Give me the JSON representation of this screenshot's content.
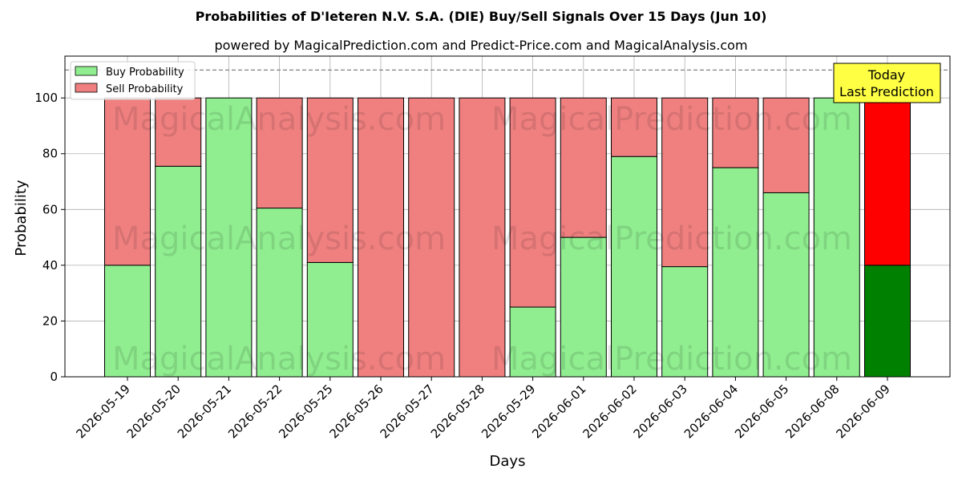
{
  "chart_data": {
    "type": "bar",
    "stacked": true,
    "title": "Probabilities of D'Ieteren N.V. S.A. (DIE) Buy/Sell Signals Over 15 Days (Jun 10)",
    "subtitle": "powered by MagicalPrediction.com and Predict-Price.com and MagicalAnalysis.com",
    "xlabel": "Days",
    "ylabel": "Probability",
    "ylim": [
      0,
      115
    ],
    "yticks": [
      0,
      20,
      40,
      60,
      80,
      100
    ],
    "grid": true,
    "legend_position": "top-left",
    "reference_line": 110,
    "categories": [
      "2026-05-19",
      "2026-05-20",
      "2026-05-21",
      "2026-05-22",
      "2026-05-25",
      "2026-05-26",
      "2026-05-27",
      "2026-05-28",
      "2026-05-29",
      "2026-06-01",
      "2026-06-02",
      "2026-06-03",
      "2026-06-04",
      "2026-06-05",
      "2026-06-08",
      "2026-06-09"
    ],
    "series": [
      {
        "name": "Buy Probability",
        "color": "#90ee90",
        "highlight_color": "#008000",
        "values": [
          40,
          75.5,
          100,
          60.5,
          41,
          0,
          0,
          0,
          25,
          50,
          79,
          39.5,
          75,
          66,
          100,
          40
        ]
      },
      {
        "name": "Sell Probability",
        "color": "#f08080",
        "highlight_color": "#ff0000",
        "values": [
          60,
          24.5,
          0,
          39.5,
          59,
          100,
          100,
          100,
          75,
          50,
          21,
          60.5,
          25,
          34,
          0,
          60
        ]
      }
    ],
    "highlight_last": true,
    "annotation": {
      "line1": "Today",
      "line2": "Last Prediction",
      "bg_color": "#ffff44"
    },
    "watermarks": [
      "MagicalAnalysis.com",
      "MagicalPrediction.com"
    ]
  }
}
